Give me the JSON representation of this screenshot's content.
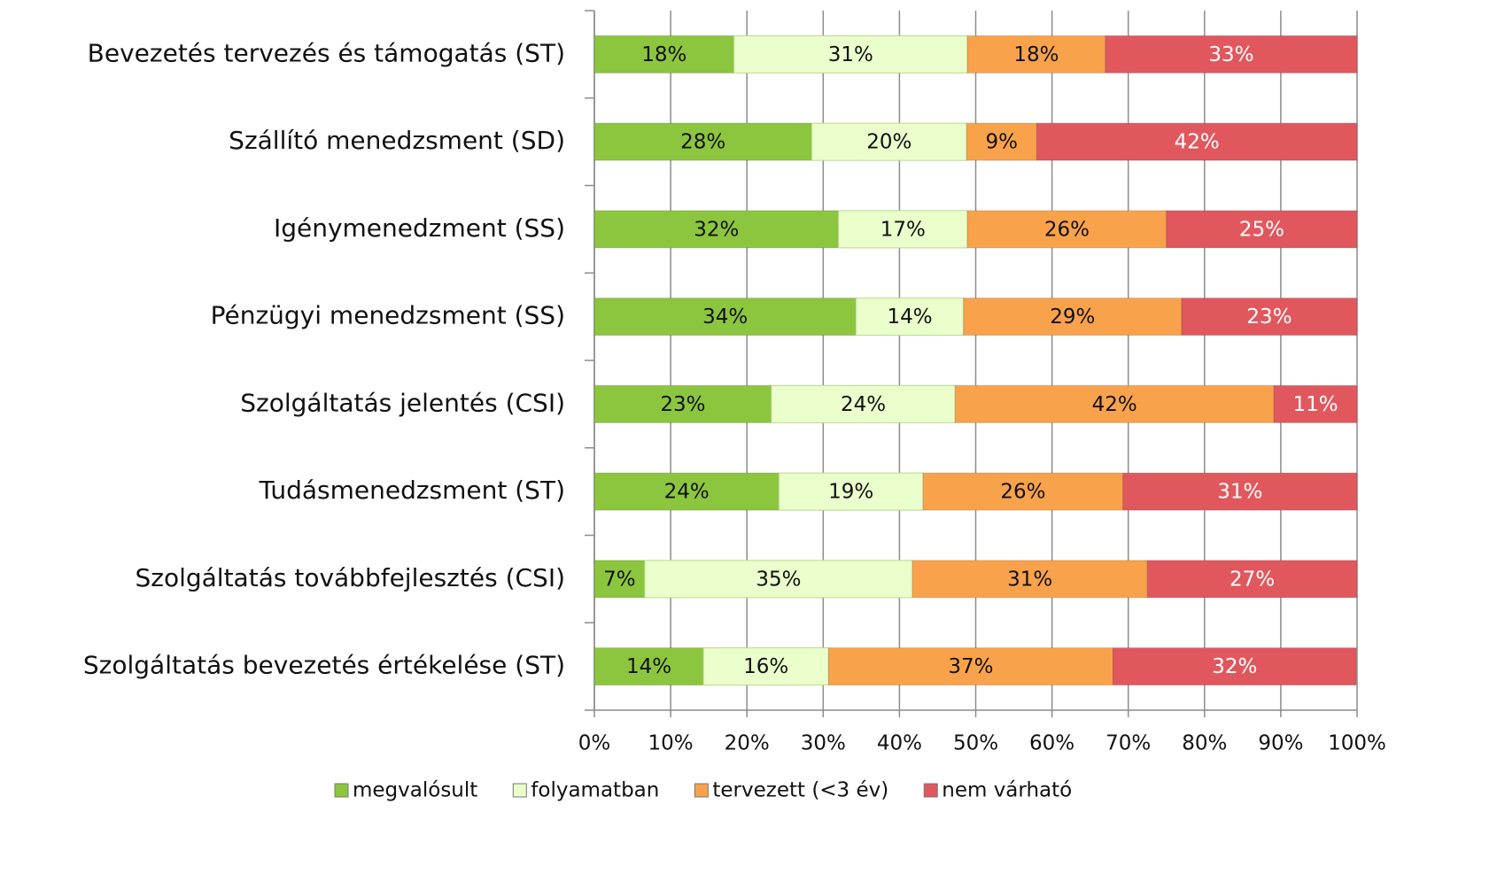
{
  "chart_data": {
    "type": "stacked_bar_horizontal",
    "categories": [
      "Bevezetés tervezés és támogatás (ST)",
      "Szállító menedzsment (SD)",
      "Igénymenedzment (SS)",
      "Pénzügyi menedzsment (SS)",
      "Szolgáltatás jelentés (CSI)",
      "Tudásmenedzsment (ST)",
      "Szolgáltatás továbbfejlesztés (CSI)",
      "Szolgáltatás bevezetés értékelése  (ST)"
    ],
    "series": [
      {
        "name": "megvalósult",
        "color": "#8cc63e",
        "values": [
          18.3,
          28.5,
          32,
          34.3,
          23.2,
          24.2,
          6.6,
          14.3
        ],
        "value_labels": [
          "18%",
          "28%",
          "32%",
          "34%",
          "23%",
          "24%",
          "7%",
          "14%"
        ]
      },
      {
        "name": "folyamatban",
        "color": "#eaffcc",
        "values": [
          30.6,
          20.3,
          16.9,
          14.1,
          24.1,
          18.9,
          35.1,
          16.4
        ],
        "value_labels": [
          "31%",
          "20%",
          "17%",
          "14%",
          "24%",
          "19%",
          "35%",
          "16%"
        ]
      },
      {
        "name": "tervezett (<3 év)",
        "color": "#f9a24c",
        "values": [
          18.1,
          9.2,
          26.1,
          28.6,
          41.8,
          26.2,
          30.8,
          37.3
        ],
        "value_labels": [
          "18%",
          "9%",
          "26%",
          "29%",
          "42%",
          "26%",
          "31%",
          "37%"
        ]
      },
      {
        "name": "nem várható",
        "color": "#e0585e",
        "values": [
          33,
          42,
          25,
          23,
          10.9,
          30.7,
          27.5,
          31.9
        ],
        "value_labels": [
          "33%",
          "42%",
          "25%",
          "23%",
          "11%",
          "31%",
          "27%",
          "32%"
        ]
      }
    ],
    "xlim": [
      0,
      100
    ],
    "xticks": [
      {
        "value": 0,
        "label": "0%"
      },
      {
        "value": 10,
        "label": "10%"
      },
      {
        "value": 20,
        "label": "20%"
      },
      {
        "value": 30,
        "label": "30%"
      },
      {
        "value": 40,
        "label": "40%"
      },
      {
        "value": 50,
        "label": "50%"
      },
      {
        "value": 60,
        "label": "60%"
      },
      {
        "value": 70,
        "label": "70%"
      },
      {
        "value": 80,
        "label": "80%"
      },
      {
        "value": 90,
        "label": "90%"
      },
      {
        "value": 100,
        "label": "100%"
      }
    ],
    "grid": true,
    "legend": "bottom"
  }
}
